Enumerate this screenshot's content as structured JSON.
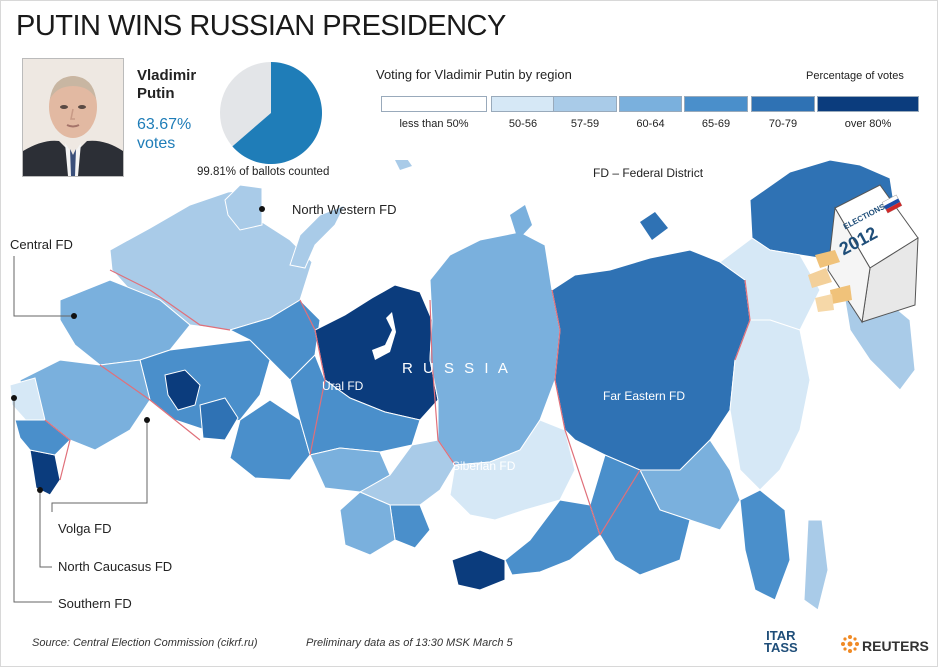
{
  "title": "PUTIN WINS RUSSIAN PRESIDENCY",
  "candidate": {
    "name_line1": "Vladimir",
    "name_line2": "Putin",
    "percent": "63.67%",
    "votes_label": "votes",
    "vote_share": 63.67
  },
  "ballots_counted": "99.81% of ballots counted",
  "legend": {
    "title": "Voting for Vladimir Putin by region",
    "note": "Percentage of votes",
    "items": [
      {
        "label": "less than 50%",
        "color": "#ffffff"
      },
      {
        "label": "50-56",
        "color": "#d6e8f6"
      },
      {
        "label": "57-59",
        "color": "#a9cbe8"
      },
      {
        "label": "60-64",
        "color": "#7ab0dd"
      },
      {
        "label": "65-69",
        "color": "#4a8fcb"
      },
      {
        "label": "70-79",
        "color": "#2f72b4"
      },
      {
        "label": "over 80%",
        "color": "#0b3c7d"
      }
    ]
  },
  "fd_note": "FD – Federal District",
  "map": {
    "country_label": "R U S S I A",
    "districts": [
      {
        "name": "Ural FD"
      },
      {
        "name": "Siberian FD"
      },
      {
        "name": "Far Eastern FD"
      }
    ],
    "callouts": {
      "north_western": "North Western FD",
      "central": "Central FD",
      "volga": "Volga FD",
      "north_caucasus": "North Caucasus FD",
      "southern": "Southern FD"
    },
    "ballot_box": {
      "line1": "ELECTIONS",
      "line2": "2012"
    }
  },
  "footer": {
    "source": "Source: Central Election Commission (cikrf.ru)",
    "preliminary": "Preliminary data as of 13:30 MSK March 5"
  },
  "logos": {
    "itar_line1": "ITAR",
    "itar_line2": "TASS",
    "reuters": "REUTERS"
  }
}
